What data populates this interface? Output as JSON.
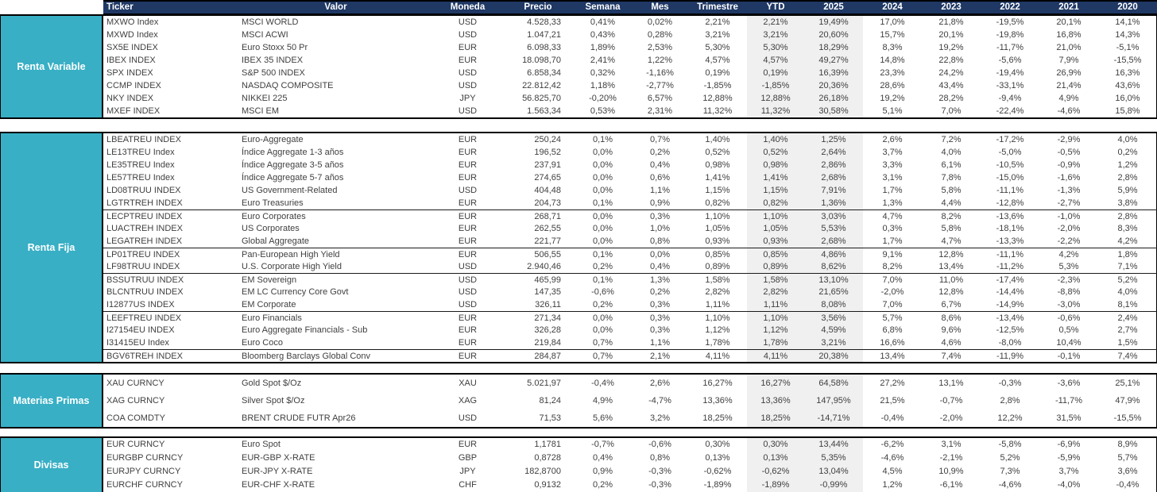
{
  "report": {
    "columns": [
      "Ticker",
      "Valor",
      "Moneda",
      "Precio",
      "Semana",
      "Mes",
      "Trimestre",
      "YTD",
      "2025",
      "2024",
      "2023",
      "2022",
      "2021",
      "2020"
    ],
    "colors": {
      "header_bg": "#1f3864",
      "header_text": "#ffffff",
      "sidebar_bg": "#38afc5",
      "sidebar_text": "#ffffff",
      "highlight_bg": "#f0f0f0",
      "text": "#3f3f3f"
    },
    "sections": [
      {
        "label": "Renta Variable",
        "group_starts": [],
        "rows": [
          [
            "MXWO Index",
            "MSCI WORLD",
            "USD",
            "4.528,33",
            "0,41%",
            "0,02%",
            "2,21%",
            "2,21%",
            "19,49%",
            "17,0%",
            "21,8%",
            "-19,5%",
            "20,1%",
            "14,1%"
          ],
          [
            "MXWD Index",
            "MSCI ACWI",
            "USD",
            "1.047,21",
            "0,43%",
            "0,28%",
            "3,21%",
            "3,21%",
            "20,60%",
            "15,7%",
            "20,1%",
            "-19,8%",
            "16,8%",
            "14,3%"
          ],
          [
            "SX5E INDEX",
            "Euro Stoxx 50 Pr",
            "EUR",
            "6.098,33",
            "1,89%",
            "2,53%",
            "5,30%",
            "5,30%",
            "18,29%",
            "8,3%",
            "19,2%",
            "-11,7%",
            "21,0%",
            "-5,1%"
          ],
          [
            "IBEX INDEX",
            "IBEX 35 INDEX",
            "EUR",
            "18.098,70",
            "2,41%",
            "1,22%",
            "4,57%",
            "4,57%",
            "49,27%",
            "14,8%",
            "22,8%",
            "-5,6%",
            "7,9%",
            "-15,5%"
          ],
          [
            "SPX INDEX",
            "S&P 500 INDEX",
            "USD",
            "6.858,34",
            "0,32%",
            "-1,16%",
            "0,19%",
            "0,19%",
            "16,39%",
            "23,3%",
            "24,2%",
            "-19,4%",
            "26,9%",
            "16,3%"
          ],
          [
            "CCMP INDEX",
            "NASDAQ COMPOSITE",
            "USD",
            "22.812,42",
            "1,18%",
            "-2,77%",
            "-1,85%",
            "-1,85%",
            "20,36%",
            "28,6%",
            "43,4%",
            "-33,1%",
            "21,4%",
            "43,6%"
          ],
          [
            "NKY INDEX",
            "NIKKEI 225",
            "JPY",
            "56.825,70",
            "-0,20%",
            "6,57%",
            "12,88%",
            "12,88%",
            "26,18%",
            "19,2%",
            "28,2%",
            "-9,4%",
            "4,9%",
            "16,0%"
          ],
          [
            "MXEF INDEX",
            "MSCI EM",
            "USD",
            "1.563,34",
            "0,53%",
            "2,31%",
            "11,32%",
            "11,32%",
            "30,58%",
            "5,1%",
            "7,0%",
            "-22,4%",
            "-4,6%",
            "15,8%"
          ]
        ]
      },
      {
        "label": "Renta Fija",
        "group_starts": [
          6,
          9,
          11,
          14,
          17
        ],
        "rows": [
          [
            "LBEATREU INDEX",
            "Euro-Aggregate",
            "EUR",
            "250,24",
            "0,1%",
            "0,7%",
            "1,40%",
            "1,40%",
            "1,25%",
            "2,6%",
            "7,2%",
            "-17,2%",
            "-2,9%",
            "4,0%"
          ],
          [
            "LE13TREU Index",
            "Índice Aggregate 1-3 años",
            "EUR",
            "196,52",
            "0,0%",
            "0,2%",
            "0,52%",
            "0,52%",
            "2,64%",
            "3,7%",
            "4,0%",
            "-5,0%",
            "-0,5%",
            "0,2%"
          ],
          [
            "LE35TREU Index",
            "Índice Aggregate 3-5 años",
            "EUR",
            "237,91",
            "0,0%",
            "0,4%",
            "0,98%",
            "0,98%",
            "2,86%",
            "3,3%",
            "6,1%",
            "-10,5%",
            "-0,9%",
            "1,2%"
          ],
          [
            "LE57TREU Index",
            "Índice Aggregate 5-7 años",
            "EUR",
            "274,65",
            "0,0%",
            "0,6%",
            "1,41%",
            "1,41%",
            "2,68%",
            "3,1%",
            "7,8%",
            "-15,0%",
            "-1,6%",
            "2,8%"
          ],
          [
            "LD08TRUU INDEX",
            "US Government-Related",
            "USD",
            "404,48",
            "0,0%",
            "1,1%",
            "1,15%",
            "1,15%",
            "7,91%",
            "1,7%",
            "5,8%",
            "-11,1%",
            "-1,3%",
            "5,9%"
          ],
          [
            "LGTRTREH INDEX",
            "Euro Treasuries",
            "EUR",
            "204,73",
            "0,1%",
            "0,9%",
            "0,82%",
            "0,82%",
            "1,36%",
            "1,3%",
            "4,4%",
            "-12,8%",
            "-2,7%",
            "3,8%"
          ],
          [
            "LECPTREU INDEX",
            "Euro Corporates",
            "EUR",
            "268,71",
            "0,0%",
            "0,3%",
            "1,10%",
            "1,10%",
            "3,03%",
            "4,7%",
            "8,2%",
            "-13,6%",
            "-1,0%",
            "2,8%"
          ],
          [
            "LUACTREH INDEX",
            "US Corporates",
            "EUR",
            "262,55",
            "0,0%",
            "1,0%",
            "1,05%",
            "1,05%",
            "5,53%",
            "0,3%",
            "5,8%",
            "-18,1%",
            "-2,0%",
            "8,3%"
          ],
          [
            "LEGATREH INDEX",
            "Global Aggregate",
            "EUR",
            "221,77",
            "0,0%",
            "0,8%",
            "0,93%",
            "0,93%",
            "2,68%",
            "1,7%",
            "4,7%",
            "-13,3%",
            "-2,2%",
            "4,2%"
          ],
          [
            "LP01TREU INDEX",
            "Pan-European High Yield",
            "EUR",
            "506,55",
            "0,1%",
            "0,0%",
            "0,85%",
            "0,85%",
            "4,86%",
            "9,1%",
            "12,8%",
            "-11,1%",
            "4,2%",
            "1,8%"
          ],
          [
            "LF98TRUU INDEX",
            "U.S. Corporate High Yield",
            "USD",
            "2.940,46",
            "0,2%",
            "0,4%",
            "0,89%",
            "0,89%",
            "8,62%",
            "8,2%",
            "13,4%",
            "-11,2%",
            "5,3%",
            "7,1%"
          ],
          [
            "BSSUTRUU INDEX",
            "EM Sovereign",
            "USD",
            "465,99",
            "0,1%",
            "1,3%",
            "1,58%",
            "1,58%",
            "13,10%",
            "7,0%",
            "11,0%",
            "-17,4%",
            "-2,3%",
            "5,2%"
          ],
          [
            "BLCNTRUU INDEX",
            "EM LC Currency Core Govt",
            "USD",
            "147,35",
            "-0,6%",
            "0,2%",
            "2,82%",
            "2,82%",
            "21,65%",
            "-2,0%",
            "12,8%",
            "-14,4%",
            "-8,8%",
            "4,0%"
          ],
          [
            "I12877US INDEX",
            "EM Corporate",
            "USD",
            "326,11",
            "0,2%",
            "0,3%",
            "1,11%",
            "1,11%",
            "8,08%",
            "7,0%",
            "6,7%",
            "-14,9%",
            "-3,0%",
            "8,1%"
          ],
          [
            "LEEFTREU INDEX",
            "Euro Financials",
            "EUR",
            "271,34",
            "0,0%",
            "0,3%",
            "1,10%",
            "1,10%",
            "3,56%",
            "5,7%",
            "8,6%",
            "-13,4%",
            "-0,6%",
            "2,4%"
          ],
          [
            "I27154EU INDEX",
            "Euro Aggregate Financials - Sub",
            "EUR",
            "326,28",
            "0,0%",
            "0,3%",
            "1,12%",
            "1,12%",
            "4,59%",
            "6,8%",
            "9,6%",
            "-12,5%",
            "0,5%",
            "2,7%"
          ],
          [
            "I31415EU Index",
            "Euro Coco",
            "EUR",
            "219,84",
            "0,7%",
            "1,1%",
            "1,78%",
            "1,78%",
            "3,21%",
            "16,6%",
            "4,6%",
            "-8,0%",
            "10,4%",
            "1,5%"
          ],
          [
            "BGV6TREH INDEX",
            "Bloomberg Barclays Global Conv",
            "EUR",
            "284,87",
            "0,7%",
            "2,1%",
            "4,11%",
            "4,11%",
            "20,38%",
            "13,4%",
            "7,4%",
            "-11,9%",
            "-0,1%",
            "7,4%"
          ]
        ]
      },
      {
        "label": "Materias Primas",
        "group_starts": [],
        "rows": [
          [
            "XAU CURNCY",
            "Gold Spot   $/Oz",
            "XAU",
            "5.021,97",
            "-0,4%",
            "2,6%",
            "16,27%",
            "16,27%",
            "64,58%",
            "27,2%",
            "13,1%",
            "-0,3%",
            "-3,6%",
            "25,1%"
          ],
          [
            "XAG CURNCY",
            "Silver Spot   $/Oz",
            "XAG",
            "81,24",
            "4,9%",
            "-4,7%",
            "13,36%",
            "13,36%",
            "147,95%",
            "21,5%",
            "-0,7%",
            "2,8%",
            "-11,7%",
            "47,9%"
          ],
          [
            "COA COMDTY",
            "BRENT CRUDE FUTR  Apr26",
            "USD",
            "71,53",
            "5,6%",
            "3,2%",
            "18,25%",
            "18,25%",
            "-14,71%",
            "-0,4%",
            "-2,0%",
            "12,2%",
            "31,5%",
            "-15,5%"
          ]
        ]
      },
      {
        "label": "Divisas",
        "group_starts": [],
        "rows": [
          [
            "EUR CURNCY",
            "Euro Spot",
            "EUR",
            "1,1781",
            "-0,7%",
            "-0,6%",
            "0,30%",
            "0,30%",
            "13,44%",
            "-6,2%",
            "3,1%",
            "-5,8%",
            "-6,9%",
            "8,9%"
          ],
          [
            "EURGBP CURNCY",
            "EUR-GBP X-RATE",
            "GBP",
            "0,8728",
            "0,4%",
            "0,8%",
            "0,13%",
            "0,13%",
            "5,35%",
            "-4,6%",
            "-2,1%",
            "5,2%",
            "-5,9%",
            "5,7%"
          ],
          [
            "EURJPY CURNCY",
            "EUR-JPY X-RATE",
            "JPY",
            "182,8700",
            "0,9%",
            "-0,3%",
            "-0,62%",
            "-0,62%",
            "13,04%",
            "4,5%",
            "10,9%",
            "7,3%",
            "3,7%",
            "3,6%"
          ],
          [
            "EURCHF CURNCY",
            "EUR-CHF X-RATE",
            "CHF",
            "0,9132",
            "0,2%",
            "-0,3%",
            "-1,89%",
            "-1,89%",
            "-0,99%",
            "1,2%",
            "-6,1%",
            "-4,6%",
            "-4,0%",
            "-0,4%"
          ]
        ]
      }
    ]
  }
}
